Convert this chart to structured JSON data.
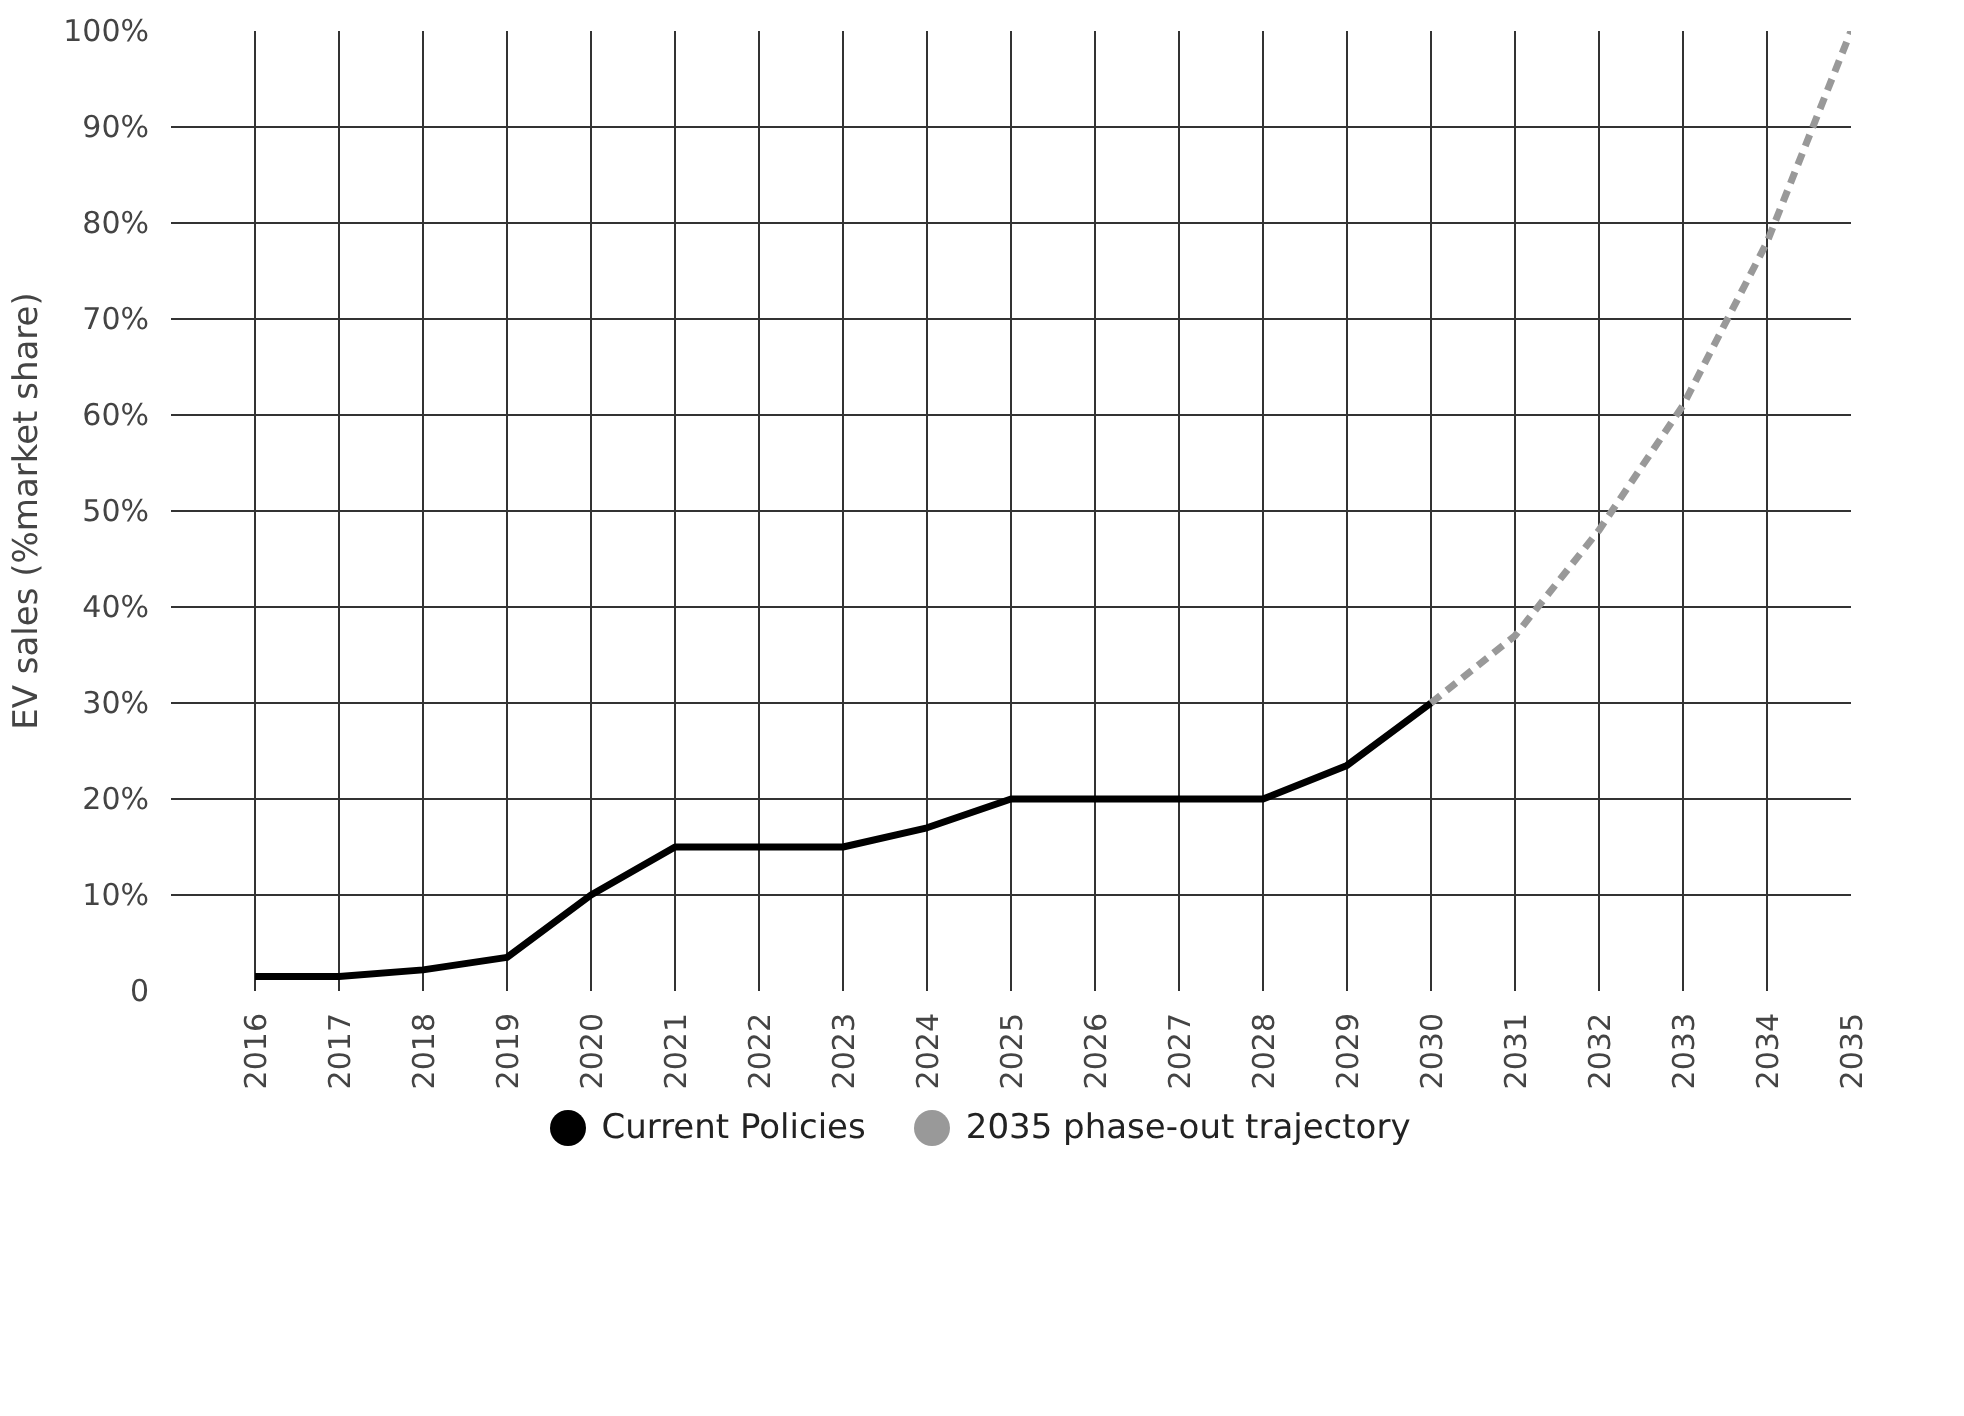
{
  "chart_data": {
    "type": "line",
    "ylabel": "EV sales (%market share)",
    "xlim": [
      2015,
      2035
    ],
    "xticks": [
      2016,
      2017,
      2018,
      2019,
      2020,
      2021,
      2022,
      2023,
      2024,
      2025,
      2026,
      2027,
      2028,
      2029,
      2030,
      2031,
      2032,
      2033,
      2034,
      2035
    ],
    "ylim": [
      0,
      100
    ],
    "yticks": [
      0,
      {
        "value": 10,
        "label": "10%"
      },
      {
        "value": 20,
        "label": "20%"
      },
      {
        "value": 30,
        "label": "30%"
      },
      {
        "value": 40,
        "label": "40%"
      },
      {
        "value": 50,
        "label": "50%"
      },
      {
        "value": 60,
        "label": "60%"
      },
      {
        "value": 70,
        "label": "70%"
      },
      {
        "value": 80,
        "label": "80%"
      },
      {
        "value": 90,
        "label": "90%"
      },
      {
        "value": 100,
        "label": "100%"
      }
    ],
    "grid": true,
    "legend": "bottom",
    "marker": "none",
    "series": [
      {
        "name": "Current Policies",
        "color": "#000000",
        "line_style": "solid",
        "x": [
          2016,
          2017,
          2018,
          2019,
          2020,
          2021,
          2022,
          2023,
          2024,
          2025,
          2026,
          2027,
          2028,
          2029,
          2030
        ],
        "values": [
          1.5,
          1.5,
          2.2,
          3.5,
          10,
          15,
          15,
          15,
          17,
          20,
          20,
          20,
          20,
          23.5,
          30
        ]
      },
      {
        "name": "2035 phase-out trajectory",
        "color": "#999999",
        "line_style": "dashed",
        "x": [
          2030,
          2031,
          2032,
          2033,
          2034,
          2035
        ],
        "values": [
          30,
          37,
          48,
          61,
          78,
          100
        ]
      }
    ]
  }
}
